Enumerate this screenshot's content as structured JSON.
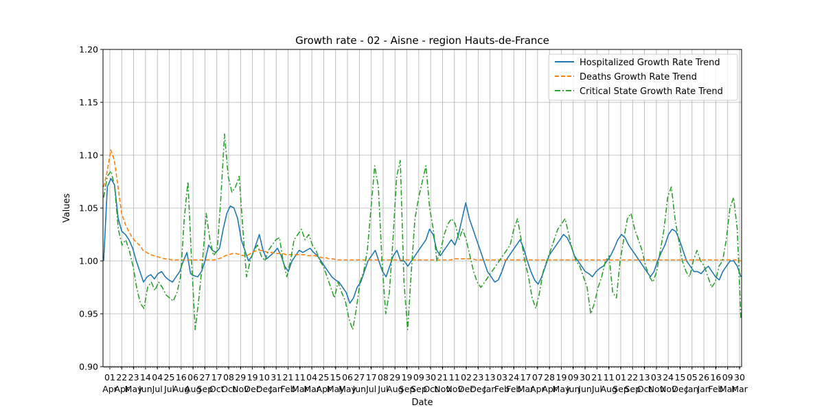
{
  "chart_data": {
    "type": "line",
    "title": "Growth rate - 02 - Aisne - region Hauts-de-France",
    "xlabel": "Date",
    "ylabel": "Values",
    "ylim": [
      0.9,
      1.2
    ],
    "yticks": [
      "0.90",
      "0.95",
      "1.00",
      "1.05",
      "1.10",
      "1.15",
      "1.20"
    ],
    "grid": true,
    "legend_position": "top-right",
    "x_ticks": [
      {
        "day": "01",
        "month": "Apr"
      },
      {
        "day": "22",
        "month": "Apr"
      },
      {
        "day": "23",
        "month": "May"
      },
      {
        "day": "14",
        "month": "Jun"
      },
      {
        "day": "04",
        "month": "Jul"
      },
      {
        "day": "25",
        "month": "Jul"
      },
      {
        "day": "16",
        "month": "Aug"
      },
      {
        "day": "06",
        "month": "Aug"
      },
      {
        "day": "27",
        "month": "Sep"
      },
      {
        "day": "17",
        "month": "Oct"
      },
      {
        "day": "08",
        "month": "Oct"
      },
      {
        "day": "29",
        "month": "Nov"
      },
      {
        "day": "19",
        "month": "Dec"
      },
      {
        "day": "10",
        "month": "Dec"
      },
      {
        "day": "31",
        "month": "Jan"
      },
      {
        "day": "21",
        "month": "Feb"
      },
      {
        "day": "11",
        "month": "Mar"
      },
      {
        "day": "04",
        "month": "Mar"
      },
      {
        "day": "25",
        "month": "Apr"
      },
      {
        "day": "15",
        "month": "May"
      },
      {
        "day": "06",
        "month": "May"
      },
      {
        "day": "27",
        "month": "Jun"
      },
      {
        "day": "17",
        "month": "Jul"
      },
      {
        "day": "08",
        "month": "Jul"
      },
      {
        "day": "29",
        "month": "Aug"
      },
      {
        "day": "19",
        "month": "Sep"
      },
      {
        "day": "09",
        "month": "Sep"
      },
      {
        "day": "30",
        "month": "Oct"
      },
      {
        "day": "21",
        "month": "Nov"
      },
      {
        "day": "11",
        "month": "Nov"
      },
      {
        "day": "02",
        "month": "Dec"
      },
      {
        "day": "23",
        "month": "Dec"
      },
      {
        "day": "13",
        "month": "Jan"
      },
      {
        "day": "03",
        "month": "Feb"
      },
      {
        "day": "24",
        "month": "Feb"
      },
      {
        "day": "17",
        "month": "Mar"
      },
      {
        "day": "07",
        "month": "Apr"
      },
      {
        "day": "28",
        "month": "Apr"
      },
      {
        "day": "19",
        "month": "May"
      },
      {
        "day": "09",
        "month": "Jun"
      },
      {
        "day": "30",
        "month": "Jun"
      },
      {
        "day": "21",
        "month": "Jul"
      },
      {
        "day": "11",
        "month": "Aug"
      },
      {
        "day": "01",
        "month": "Sep"
      },
      {
        "day": "22",
        "month": "Sep"
      },
      {
        "day": "13",
        "month": "Oct"
      },
      {
        "day": "03",
        "month": "Nov"
      },
      {
        "day": "24",
        "month": "Nov"
      },
      {
        "day": "15",
        "month": "Dec"
      },
      {
        "day": "05",
        "month": "Jan"
      },
      {
        "day": "26",
        "month": "Jan"
      },
      {
        "day": "16",
        "month": "Feb"
      },
      {
        "day": "09",
        "month": "Mar"
      },
      {
        "day": "30",
        "month": "Mar"
      }
    ],
    "series": [
      {
        "name": "Hospitalized Growth Rate Trend",
        "color": "#1f77b4",
        "style": "solid",
        "values": [
          1.0,
          1.07,
          1.078,
          1.072,
          1.04,
          1.028,
          1.025,
          1.02,
          1.012,
          1.0,
          0.99,
          0.98,
          0.985,
          0.987,
          0.983,
          0.988,
          0.99,
          0.985,
          0.982,
          0.98,
          0.985,
          0.99,
          1.0,
          1.008,
          0.988,
          0.986,
          0.985,
          0.99,
          1.0,
          1.015,
          1.01,
          1.008,
          1.012,
          1.03,
          1.045,
          1.052,
          1.05,
          1.04,
          1.02,
          1.01,
          1.0,
          1.005,
          1.015,
          1.025,
          1.01,
          1.002,
          1.005,
          1.008,
          1.012,
          1.005,
          0.995,
          0.99,
          1.0,
          1.005,
          1.01,
          1.008,
          1.01,
          1.012,
          1.008,
          1.005,
          1.0,
          0.995,
          0.99,
          0.985,
          0.982,
          0.98,
          0.975,
          0.97,
          0.96,
          0.965,
          0.975,
          0.98,
          0.99,
          1.0,
          1.005,
          1.01,
          1.0,
          0.99,
          0.985,
          0.995,
          1.005,
          1.01,
          1.0,
          1.0,
          0.995,
          1.0,
          1.005,
          1.01,
          1.015,
          1.02,
          1.03,
          1.025,
          1.01,
          1.005,
          1.01,
          1.015,
          1.02,
          1.015,
          1.025,
          1.04,
          1.055,
          1.04,
          1.03,
          1.02,
          1.01,
          1.0,
          0.99,
          0.985,
          0.98,
          0.982,
          0.99,
          1.0,
          1.005,
          1.01,
          1.015,
          1.02,
          1.012,
          1.0,
          0.99,
          0.982,
          0.978,
          0.985,
          0.995,
          1.005,
          1.01,
          1.015,
          1.02,
          1.025,
          1.022,
          1.015,
          1.005,
          1.0,
          0.995,
          0.99,
          0.988,
          0.985,
          0.99,
          0.993,
          0.995,
          1.0,
          1.005,
          1.012,
          1.02,
          1.025,
          1.022,
          1.015,
          1.01,
          1.005,
          1.0,
          0.995,
          0.99,
          0.985,
          0.99,
          1.0,
          1.008,
          1.015,
          1.025,
          1.03,
          1.028,
          1.02,
          1.01,
          1.0,
          0.995,
          0.99,
          0.99,
          0.988,
          0.992,
          0.995,
          0.99,
          0.985,
          0.982,
          0.99,
          0.995,
          1.0,
          1.0,
          0.995,
          0.985
        ]
      },
      {
        "name": "Deaths Growth Rate Trend",
        "color": "#ff7f0e",
        "style": "dashed",
        "values": [
          1.07,
          1.085,
          1.105,
          1.095,
          1.07,
          1.045,
          1.035,
          1.028,
          1.022,
          1.018,
          1.015,
          1.01,
          1.008,
          1.006,
          1.005,
          1.004,
          1.003,
          1.002,
          1.002,
          1.001,
          1.001,
          1.001,
          1.001,
          1.001,
          1.001,
          1.001,
          1.001,
          1.001,
          1.001,
          1.001,
          1.001,
          1.001,
          1.002,
          1.003,
          1.005,
          1.006,
          1.007,
          1.007,
          1.006,
          1.005,
          1.005,
          1.007,
          1.009,
          1.01,
          1.01,
          1.009,
          1.008,
          1.008,
          1.007,
          1.007,
          1.007,
          1.006,
          1.006,
          1.006,
          1.006,
          1.006,
          1.006,
          1.005,
          1.005,
          1.005,
          1.004,
          1.003,
          1.003,
          1.002,
          1.002,
          1.001,
          1.001,
          1.001,
          1.001,
          1.001,
          1.001,
          1.001,
          1.001,
          1.001,
          1.001,
          1.001,
          1.001,
          1.001,
          1.001,
          1.001,
          1.001,
          1.001,
          1.001,
          1.001,
          1.001,
          1.001,
          1.001,
          1.001,
          1.001,
          1.001,
          1.001,
          1.001,
          1.001,
          1.001,
          1.001,
          1.001,
          1.001,
          1.001,
          1.002,
          1.002,
          1.002,
          1.002,
          1.002,
          1.002,
          1.001,
          1.001,
          1.001,
          1.001,
          1.001,
          1.001,
          1.001,
          1.001,
          1.001,
          1.001,
          1.001,
          1.001,
          1.001,
          1.001,
          1.001,
          1.001,
          1.001,
          1.001,
          1.001,
          1.001,
          1.001,
          1.001,
          1.001,
          1.001,
          1.001,
          1.001,
          1.001,
          1.001,
          1.001,
          1.001,
          1.001,
          1.001,
          1.001,
          1.001,
          1.001,
          1.001,
          1.001,
          1.001,
          1.001,
          1.001,
          1.001,
          1.001,
          1.001,
          1.001,
          1.001,
          1.001,
          1.001,
          1.001,
          1.001,
          1.001,
          1.001,
          1.001,
          1.001,
          1.001,
          1.001,
          1.001,
          1.001,
          1.001,
          1.001,
          1.001,
          1.001,
          1.001,
          1.001,
          1.001,
          1.001,
          1.001,
          1.001,
          1.001,
          1.001,
          1.001,
          1.001,
          1.001,
          1.001,
          1.001,
          1.0
        ]
      },
      {
        "name": "Critical State Growth Rate Trend",
        "color": "#2ca02c",
        "style": "dashdot",
        "values": [
          1.06,
          1.08,
          1.085,
          1.07,
          1.03,
          1.015,
          1.02,
          1.01,
          0.995,
          0.975,
          0.96,
          0.955,
          0.975,
          0.98,
          0.972,
          0.98,
          0.975,
          0.968,
          0.965,
          0.962,
          0.97,
          0.985,
          1.04,
          1.075,
          1.0,
          0.935,
          0.965,
          1.0,
          1.045,
          1.02,
          1.005,
          1.01,
          1.06,
          1.12,
          1.08,
          1.065,
          1.07,
          1.08,
          1.03,
          0.985,
          1.0,
          1.01,
          1.015,
          1.005,
          1.0,
          1.01,
          1.015,
          1.02,
          1.022,
          1.0,
          0.985,
          1.0,
          1.02,
          1.025,
          1.03,
          1.02,
          1.025,
          1.015,
          1.01,
          1.0,
          0.995,
          0.985,
          0.975,
          0.965,
          0.98,
          0.97,
          0.962,
          0.945,
          0.935,
          0.955,
          0.98,
          0.99,
          1.01,
          1.05,
          1.09,
          1.07,
          1.0,
          0.95,
          0.97,
          1.02,
          1.08,
          1.095,
          0.98,
          0.935,
          0.99,
          1.04,
          1.06,
          1.075,
          1.09,
          1.05,
          1.03,
          1.0,
          1.01,
          1.025,
          1.035,
          1.04,
          1.035,
          1.02,
          1.03,
          1.02,
          1.005,
          0.99,
          0.98,
          0.975,
          0.98,
          0.985,
          0.99,
          0.995,
          1.0,
          1.005,
          1.01,
          1.015,
          1.03,
          1.04,
          1.02,
          1.0,
          0.985,
          0.965,
          0.955,
          0.97,
          0.99,
          1.0,
          1.01,
          1.02,
          1.03,
          1.035,
          1.04,
          1.025,
          1.01,
          1.0,
          0.995,
          0.985,
          0.975,
          0.95,
          0.96,
          0.975,
          0.985,
          1.0,
          1.005,
          0.97,
          0.965,
          1.0,
          1.02,
          1.04,
          1.045,
          1.03,
          1.02,
          1.01,
          0.995,
          0.985,
          0.98,
          0.99,
          1.01,
          1.03,
          1.06,
          1.07,
          1.04,
          1.02,
          1.0,
          0.99,
          0.985,
          1.0,
          1.01,
          1.0,
          0.995,
          0.985,
          0.975,
          0.98,
          0.995,
          1.0,
          1.02,
          1.05,
          1.06,
          1.03,
          0.945
        ]
      }
    ]
  }
}
